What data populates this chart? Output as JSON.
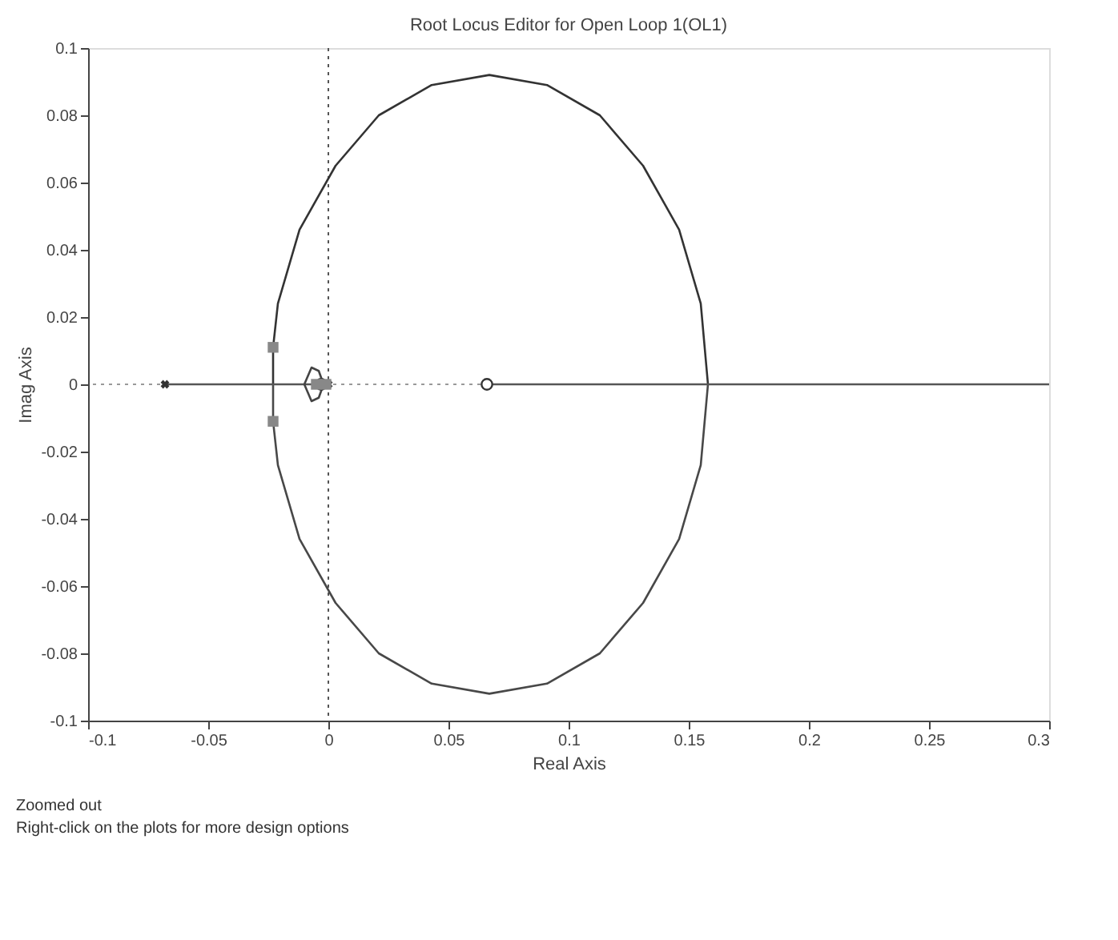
{
  "chart_data": {
    "type": "line",
    "title": "Root Locus Editor for Open Loop 1(OL1)",
    "xlabel": "Real Axis",
    "ylabel": "Imag Axis",
    "xlim": [
      -0.1,
      0.3
    ],
    "xticks": [
      -0.1,
      -0.05,
      0,
      0.05,
      0.1,
      0.15,
      0.2,
      0.25,
      0.3
    ],
    "ylim": [
      -0.1,
      0.1
    ],
    "yticks": [
      -0.1,
      -0.08,
      -0.06,
      -0.04,
      -0.02,
      0,
      0.02,
      0.04,
      0.06,
      0.08,
      0.1
    ],
    "grid": false,
    "ref_lines": [
      {
        "axis": "x",
        "value": 0,
        "line_style": "dotted",
        "color": "#555555"
      },
      {
        "axis": "y",
        "value": 0,
        "line_style": "dotted",
        "color": "#999999"
      }
    ],
    "series": [
      {
        "color": "#333333",
        "x": [
          -0.023,
          -0.023,
          -0.021,
          -0.012,
          0.003,
          0.021,
          0.043,
          0.067,
          0.091,
          0.113,
          0.131,
          0.146,
          0.155,
          0.158
        ],
        "values": [
          0,
          0.011,
          0.024,
          0.046,
          0.065,
          0.08,
          0.089,
          0.092,
          0.089,
          0.08,
          0.065,
          0.046,
          0.024,
          0
        ]
      },
      {
        "color": "#484848",
        "x": [
          -0.023,
          -0.023,
          -0.021,
          -0.012,
          0.003,
          0.021,
          0.043,
          0.067,
          0.091,
          0.113,
          0.131,
          0.146,
          0.155,
          0.158
        ],
        "values": [
          0,
          -0.011,
          -0.024,
          -0.046,
          -0.065,
          -0.08,
          -0.089,
          -0.092,
          -0.089,
          -0.08,
          -0.065,
          -0.046,
          -0.024,
          0
        ]
      },
      {
        "color": "#555555",
        "x": [
          -0.068,
          -0.023,
          -0.002
        ],
        "values": [
          0,
          0,
          0
        ]
      },
      {
        "color": "#555555",
        "x": [
          0.066,
          0.3
        ],
        "values": [
          0,
          0
        ]
      },
      {
        "color": "#444444",
        "x": [
          -0.01,
          -0.007,
          -0.004,
          -0.002
        ],
        "values": [
          0,
          0.005,
          0.004,
          0
        ]
      },
      {
        "color": "#444444",
        "x": [
          -0.01,
          -0.007,
          -0.004,
          -0.002
        ],
        "values": [
          0,
          -0.005,
          -0.004,
          0
        ]
      },
      {
        "type": "scatter",
        "color": "#333333",
        "marker": "cross",
        "x": [
          -0.068,
          0
        ],
        "values": [
          0,
          0
        ]
      },
      {
        "type": "scatter",
        "color": "#333333",
        "marker": "circle",
        "x": [
          0.066,
          -0.003
        ],
        "values": [
          0,
          0
        ]
      },
      {
        "type": "scatter",
        "color": "#888888",
        "marker": "square",
        "x": [
          -0.023,
          -0.023,
          -0.005,
          -0.001
        ],
        "values": [
          0.011,
          -0.011,
          0,
          0
        ]
      }
    ],
    "annotations": [
      "Zoomed out",
      "Right-click on the plots for more design options"
    ]
  }
}
